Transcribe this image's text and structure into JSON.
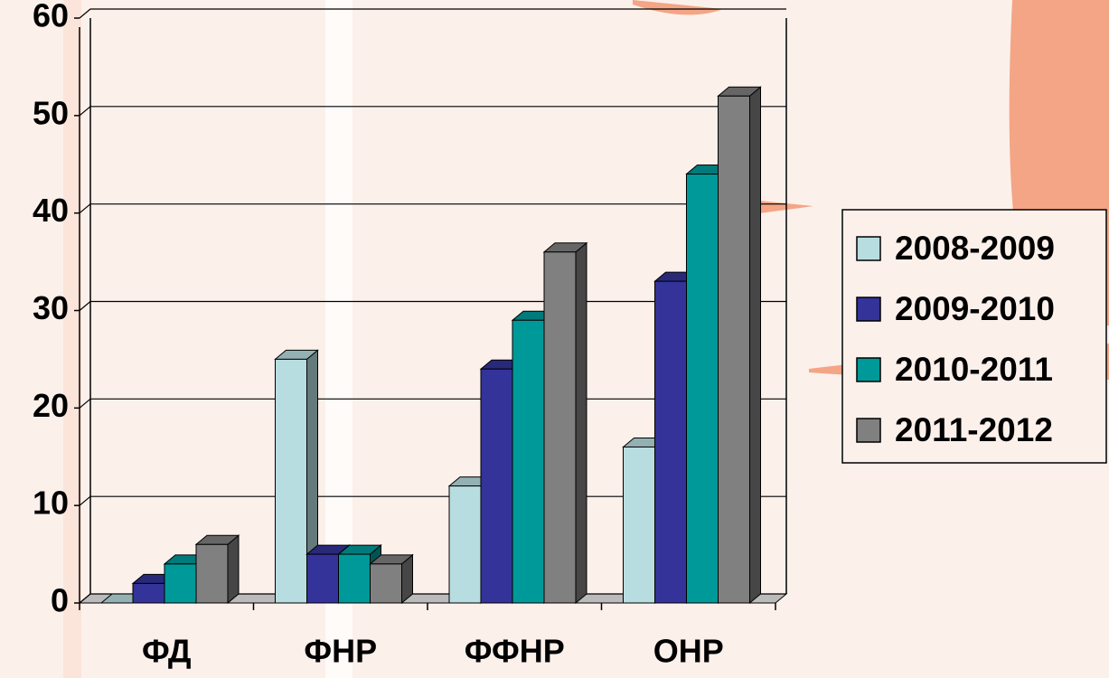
{
  "chart_data": {
    "type": "bar3d",
    "categories": [
      "ФД",
      "ФНР",
      "ФФНР",
      "ОНР"
    ],
    "series": [
      {
        "name": "2008-2009",
        "color": "#b8dde0",
        "values": [
          0,
          25,
          12,
          16
        ]
      },
      {
        "name": "2009-2010",
        "color": "#333399",
        "values": [
          2,
          5,
          24,
          33
        ]
      },
      {
        "name": "2010-2011",
        "color": "#009999",
        "values": [
          4,
          5,
          29,
          44
        ]
      },
      {
        "name": "2011-2012",
        "color": "#808080",
        "values": [
          6,
          4,
          36,
          52
        ]
      }
    ],
    "ylim": [
      0,
      60
    ],
    "yticks": [
      0,
      10,
      20,
      30,
      40,
      50,
      60
    ],
    "grid": true,
    "legend": "right"
  }
}
